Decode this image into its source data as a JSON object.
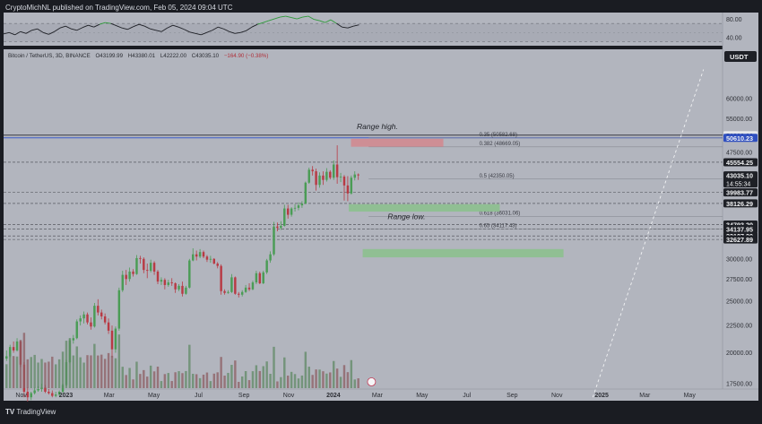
{
  "header": {
    "credit": "CryptoMichNL published on TradingView.com, Feb 05, 2024 09:04 UTC"
  },
  "symbol_line": {
    "name": "Bitcoin / TetherUS, 3D, BINANCE",
    "open": "O43199.99",
    "high": "H43380.01",
    "low": "L42222.00",
    "close": "C43035.10",
    "change": "−164.90 (−0.38%)"
  },
  "footer": {
    "logo": "TV",
    "brand": "TradingView"
  },
  "currency_button": "USDT",
  "colors": {
    "bull": "#4a9c55",
    "bear": "#b83a44",
    "bg": "#b2b5be",
    "range_high_box": "#d08a90",
    "range_low_box": "#8cc08e",
    "resistance_line": "#3c5cc9"
  },
  "chart_data": [
    {
      "type": "line",
      "name": "rsi_panel",
      "ylim": [
        25,
        90
      ],
      "y_ticks": [
        "80.00",
        "40.00"
      ],
      "values": [
        47,
        50,
        45,
        52,
        48,
        55,
        58,
        50,
        46,
        52,
        60,
        64,
        58,
        55,
        61,
        66,
        62,
        68,
        72,
        70,
        65,
        60,
        57,
        63,
        68,
        64,
        58,
        55,
        52,
        60,
        66,
        62,
        57,
        51,
        48,
        45,
        50,
        55,
        62,
        58,
        52,
        48,
        50,
        54,
        62,
        68,
        72,
        76,
        80,
        84,
        86,
        83,
        80,
        84,
        86,
        79,
        76,
        72,
        78,
        70,
        62,
        60,
        64,
        67
      ]
    },
    {
      "type": "candlestick",
      "name": "price",
      "y_scale": "log",
      "ylim": [
        17500,
        70000
      ],
      "x_range": [
        "2022-10-08",
        "2025-06-15"
      ],
      "x_ticks": [
        {
          "label": "Nov",
          "date": "2022-11-01"
        },
        {
          "label": "2023",
          "date": "2023-01-01"
        },
        {
          "label": "Mar",
          "date": "2023-03-01"
        },
        {
          "label": "May",
          "date": "2023-05-01"
        },
        {
          "label": "Jul",
          "date": "2023-07-01"
        },
        {
          "label": "Sep",
          "date": "2023-09-01"
        },
        {
          "label": "Nov",
          "date": "2023-11-01"
        },
        {
          "label": "2024",
          "date": "2024-01-01"
        },
        {
          "label": "Mar",
          "date": "2024-03-01"
        },
        {
          "label": "May",
          "date": "2024-05-01"
        },
        {
          "label": "Jul",
          "date": "2024-07-01"
        },
        {
          "label": "Sep",
          "date": "2024-09-01"
        },
        {
          "label": "Nov",
          "date": "2024-11-01"
        },
        {
          "label": "2025",
          "date": "2025-01-01"
        },
        {
          "label": "Mar",
          "date": "2025-03-01"
        },
        {
          "label": "May",
          "date": "2025-05-01"
        }
      ],
      "y_ticks": [
        {
          "value": 60000,
          "label": "60000.00"
        },
        {
          "value": 55000,
          "label": "55000.00"
        },
        {
          "value": 47500,
          "label": "47500.00"
        },
        {
          "value": 30000,
          "label": "30000.00"
        },
        {
          "value": 27500,
          "label": "27500.00"
        },
        {
          "value": 25000,
          "label": "25000.00"
        },
        {
          "value": 22500,
          "label": "22500.00"
        },
        {
          "value": 20000,
          "label": "20000.00"
        },
        {
          "value": 17500,
          "label": "17500.00"
        }
      ],
      "price_tags": [
        {
          "value": 51200,
          "label": "51200.00",
          "style": "light"
        },
        {
          "value": 50610.23,
          "label": "50610.23",
          "style": "blue"
        },
        {
          "value": 45554.25,
          "label": "45554.25",
          "style": "dark"
        },
        {
          "value": 43035.1,
          "label": "43035.10",
          "sub": "14:55:34",
          "style": "dark"
        },
        {
          "value": 39983.77,
          "label": "39983.77",
          "style": "dark"
        },
        {
          "value": 38126.29,
          "label": "38126.29",
          "style": "dark"
        },
        {
          "value": 34793.2,
          "label": "34793.20",
          "style": "dark"
        },
        {
          "value": 34137.95,
          "label": "34137.95",
          "style": "dark"
        },
        {
          "value": 33127.39,
          "label": "33127.39",
          "style": "dark"
        },
        {
          "value": 32627.89,
          "label": "32627.89",
          "style": "dark"
        }
      ],
      "levels": [
        {
          "value": 51200,
          "style": "solid-dark"
        },
        {
          "value": 50610.23,
          "style": "solid-blue"
        },
        {
          "value": 45554.25,
          "style": "dashed"
        },
        {
          "value": 39983.77,
          "style": "dashed"
        },
        {
          "value": 38126.29,
          "style": "dashed"
        },
        {
          "value": 34793.2,
          "style": "dashed"
        },
        {
          "value": 34137.95,
          "style": "dashed"
        },
        {
          "value": 33127.39,
          "style": "dashed"
        },
        {
          "value": 32627.89,
          "style": "dashed"
        }
      ],
      "fib_levels": [
        {
          "value": 50582.68,
          "label": "0.35 (50582.68)"
        },
        {
          "value": 48669.05,
          "label": "0.382 (48669.05)"
        },
        {
          "value": 42350.05,
          "label": "0.5 (42350.05)"
        },
        {
          "value": 36031.06,
          "label": "0.618 (36031.06)"
        },
        {
          "value": 34117.43,
          "label": "0.65 (34117.43)"
        }
      ],
      "zones": [
        {
          "kind": "range_high",
          "from": "2024-01-25",
          "to": "2024-05-30",
          "low": 48700,
          "high": 50400
        },
        {
          "kind": "range_low_1",
          "from": "2024-01-22",
          "to": "2024-08-15",
          "low": 36800,
          "high": 38000
        },
        {
          "kind": "range_low_2",
          "from": "2024-02-10",
          "to": "2024-11-10",
          "low": 30200,
          "high": 31300
        }
      ],
      "annotations": [
        {
          "text": "Range high.",
          "date": "2024-02-02",
          "value": 52600
        },
        {
          "text": "Range low.",
          "date": "2024-03-15",
          "value": 35600
        }
      ],
      "projection": {
        "from": {
          "date": "2024-12-20",
          "value": 16500
        },
        "to": {
          "date": "2025-05-20",
          "value": 68000
        }
      },
      "candles": [
        [
          19500,
          20200,
          19300,
          19700
        ],
        [
          19700,
          20700,
          19600,
          20500
        ],
        [
          20500,
          21000,
          20000,
          20200
        ],
        [
          20200,
          21300,
          20100,
          21000
        ],
        [
          21000,
          21100,
          18800,
          19000
        ],
        [
          19000,
          19200,
          16500,
          16900
        ],
        [
          16900,
          17200,
          16200,
          16500
        ],
        [
          16500,
          16900,
          16300,
          16800
        ],
        [
          16800,
          17200,
          16700,
          17000
        ],
        [
          17000,
          17300,
          16900,
          17100
        ],
        [
          17100,
          17500,
          16900,
          17200
        ],
        [
          17200,
          17400,
          16800,
          16900
        ],
        [
          16900,
          17100,
          16700,
          16800
        ],
        [
          16800,
          17000,
          16500,
          16600
        ],
        [
          16600,
          16900,
          16500,
          16700
        ],
        [
          16700,
          17000,
          16600,
          16900
        ],
        [
          16900,
          17500,
          16800,
          17400
        ],
        [
          17400,
          19400,
          17300,
          19200
        ],
        [
          19200,
          21300,
          19100,
          21100
        ],
        [
          21100,
          21600,
          20800,
          21300
        ],
        [
          21300,
          23100,
          21200,
          22900
        ],
        [
          22900,
          23500,
          22500,
          23200
        ],
        [
          23200,
          23900,
          22700,
          23600
        ],
        [
          23600,
          23800,
          22600,
          22800
        ],
        [
          22800,
          23300,
          22100,
          22400
        ],
        [
          22400,
          24800,
          22300,
          24500
        ],
        [
          24500,
          25200,
          23500,
          23800
        ],
        [
          23800,
          24100,
          23100,
          23400
        ],
        [
          23400,
          23700,
          22600,
          22800
        ],
        [
          22800,
          23200,
          21700,
          22000
        ],
        [
          22000,
          22500,
          19600,
          20300
        ],
        [
          20300,
          22400,
          20000,
          22200
        ],
        [
          22200,
          26500,
          22000,
          26200
        ],
        [
          26200,
          28500,
          26000,
          28000
        ],
        [
          28000,
          28600,
          26800,
          27500
        ],
        [
          27500,
          28900,
          27200,
          28400
        ],
        [
          28400,
          28700,
          27800,
          28100
        ],
        [
          28100,
          30500,
          28000,
          30100
        ],
        [
          30100,
          30400,
          29400,
          30000
        ],
        [
          30000,
          30200,
          28200,
          28600
        ],
        [
          28600,
          29400,
          27600,
          28500
        ],
        [
          28500,
          29900,
          28300,
          29500
        ],
        [
          29500,
          29700,
          28000,
          28400
        ],
        [
          28400,
          28600,
          26900,
          27200
        ],
        [
          27200,
          27700,
          26800,
          27400
        ],
        [
          27400,
          27600,
          26300,
          26800
        ],
        [
          26800,
          27400,
          26600,
          27100
        ],
        [
          27100,
          27600,
          26700,
          27000
        ],
        [
          27000,
          27100,
          25900,
          26300
        ],
        [
          26300,
          26900,
          26100,
          26700
        ],
        [
          26700,
          27200,
          25500,
          25800
        ],
        [
          25800,
          26700,
          25700,
          26500
        ],
        [
          26500,
          30000,
          26400,
          29800
        ],
        [
          29800,
          31400,
          29700,
          30600
        ],
        [
          30600,
          31100,
          29800,
          30300
        ],
        [
          30300,
          31300,
          30100,
          30900
        ],
        [
          30900,
          31100,
          30100,
          30300
        ],
        [
          30300,
          30500,
          29600,
          29900
        ],
        [
          29900,
          30400,
          29500,
          30000
        ],
        [
          30000,
          30100,
          29300,
          29400
        ],
        [
          29400,
          29600,
          28800,
          29100
        ],
        [
          29100,
          29300,
          25700,
          26100
        ],
        [
          26100,
          26300,
          25700,
          25900
        ],
        [
          25900,
          26200,
          25800,
          26000
        ],
        [
          26000,
          28100,
          25900,
          27700
        ],
        [
          27700,
          27800,
          25700,
          25800
        ],
        [
          25800,
          26000,
          25400,
          25700
        ],
        [
          25700,
          26200,
          25500,
          26000
        ],
        [
          26000,
          26800,
          25900,
          26500
        ],
        [
          26500,
          27000,
          26100,
          26300
        ],
        [
          26300,
          27300,
          26200,
          27100
        ],
        [
          27100,
          28500,
          26900,
          28200
        ],
        [
          28200,
          28400,
          26900,
          27000
        ],
        [
          27000,
          28500,
          26900,
          28300
        ],
        [
          28300,
          30000,
          28100,
          29800
        ],
        [
          29800,
          31000,
          29500,
          30600
        ],
        [
          30600,
          35200,
          30400,
          34500
        ],
        [
          34500,
          35100,
          33800,
          34300
        ],
        [
          34300,
          35300,
          34000,
          34600
        ],
        [
          34600,
          37900,
          34500,
          37300
        ],
        [
          37300,
          37900,
          35700,
          36300
        ],
        [
          36300,
          37500,
          36000,
          37300
        ],
        [
          37300,
          38000,
          36800,
          37400
        ],
        [
          37400,
          38300,
          37000,
          37800
        ],
        [
          37800,
          38500,
          37400,
          38100
        ],
        [
          38100,
          41900,
          38000,
          41700
        ],
        [
          41700,
          44500,
          41500,
          44100
        ],
        [
          44100,
          44800,
          43000,
          43800
        ],
        [
          43800,
          44300,
          40300,
          41300
        ],
        [
          41300,
          43600,
          40800,
          43000
        ],
        [
          43000,
          43800,
          41300,
          42200
        ],
        [
          42200,
          44400,
          41900,
          43700
        ],
        [
          43700,
          44000,
          42300,
          42600
        ],
        [
          42600,
          45900,
          42200,
          45100
        ],
        [
          45100,
          49000,
          41500,
          42700
        ],
        [
          42700,
          43500,
          41800,
          42800
        ],
        [
          42800,
          43100,
          38600,
          41200
        ],
        [
          41200,
          42900,
          38500,
          39800
        ],
        [
          39800,
          43000,
          39600,
          42600
        ],
        [
          42600,
          43800,
          42100,
          43200
        ],
        [
          43200,
          43400,
          42200,
          43035
        ]
      ],
      "volume_note": "volume histogram at bottom, bars colored by candle direction"
    }
  ]
}
